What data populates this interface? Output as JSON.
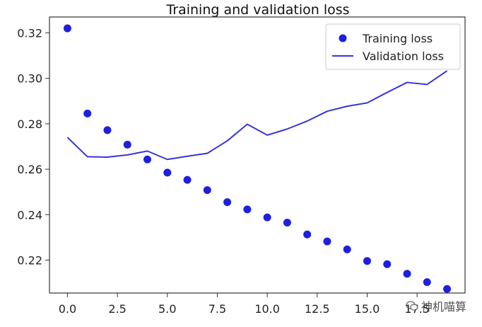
{
  "chart_data": {
    "type": "scatter",
    "title": "Training and validation loss",
    "xlabel": "",
    "ylabel": "",
    "xlim": [
      -0.9,
      19.9
    ],
    "ylim": [
      0.2055,
      0.327
    ],
    "x_ticks": [
      0.0,
      2.5,
      5.0,
      7.5,
      10.0,
      12.5,
      15.0,
      17.5
    ],
    "x_tick_labels": [
      "0.0",
      "2.5",
      "5.0",
      "7.5",
      "10.0",
      "12.5",
      "15.0",
      "17.5"
    ],
    "y_ticks": [
      0.22,
      0.24,
      0.26,
      0.28,
      0.3,
      0.32
    ],
    "y_tick_labels": [
      "0.22",
      "0.24",
      "0.26",
      "0.28",
      "0.30",
      "0.32"
    ],
    "x": [
      0,
      1,
      2,
      3,
      4,
      5,
      6,
      7,
      8,
      9,
      10,
      11,
      12,
      13,
      14,
      15,
      16,
      17,
      18,
      19
    ],
    "series": [
      {
        "name": "Training loss",
        "style": "dots",
        "color": "#1f1fe0",
        "values": [
          0.322,
          0.2845,
          0.2772,
          0.2708,
          0.2643,
          0.2585,
          0.2553,
          0.2508,
          0.2455,
          0.2423,
          0.2388,
          0.2365,
          0.2313,
          0.2282,
          0.2247,
          0.2196,
          0.2182,
          0.214,
          0.2103,
          0.2073
        ]
      },
      {
        "name": "Validation loss",
        "style": "line",
        "color": "#3636d8",
        "values": [
          0.274,
          0.2655,
          0.2653,
          0.2663,
          0.268,
          0.2643,
          0.2657,
          0.267,
          0.2725,
          0.2798,
          0.275,
          0.2777,
          0.2812,
          0.2855,
          0.2877,
          0.2892,
          0.2938,
          0.2982,
          0.2973,
          0.3033
        ]
      }
    ],
    "legend": {
      "position": "top-right",
      "entries": [
        "Training loss",
        "Validation loss"
      ]
    },
    "grid": false
  },
  "watermark": {
    "text": "神机喵算"
  }
}
